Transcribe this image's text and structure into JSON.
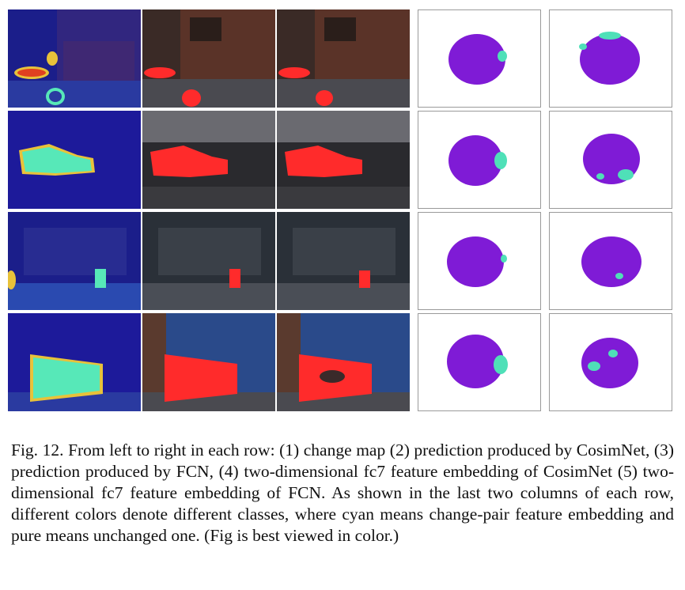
{
  "figure": {
    "columns": [
      "change map",
      "prediction produced by CosimNet",
      "prediction produced by FCN",
      "two-dimensional fc7 feature embedding of CosimNet",
      "two-dimensional fc7 feature embedding of FCN"
    ],
    "rows": 4,
    "colors": {
      "unchanged": "#7f1bd6",
      "changed": "#4fe0b8",
      "prediction_overlay": "#ff2b2b",
      "change_map_bg": "#1d1a9a",
      "change_map_hot": "#57e8b8"
    }
  },
  "caption": {
    "text": "Fig. 12.  From left to right in each row: (1) change map (2) prediction produced by CosimNet, (3) prediction produced by FCN, (4) two-dimensional fc7 feature embedding of CosimNet (5) two-dimensional fc7 feature embedding of FCN. As shown in the last two columns of each row, different colors denote different classes, where cyan means change-pair feature embedding and pure means unchanged one. (Fig is best viewed in color.)"
  }
}
